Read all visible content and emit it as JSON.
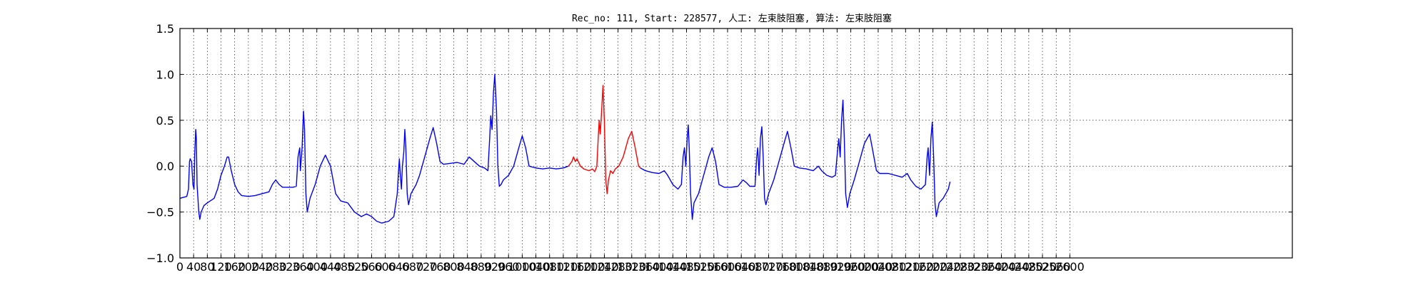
{
  "chart_data": {
    "type": "line",
    "title": "Rec_no: 111, Start: 228577, 人工: 左束肢阻塞, 算法: 左束肢阻塞",
    "xlabel": "",
    "ylabel": "",
    "xlim": [
      0,
      3250
    ],
    "ylim": [
      -1.0,
      1.5
    ],
    "grid": true,
    "yticks": [
      1.5,
      1.0,
      0.5,
      0.0,
      -0.5,
      -1.0
    ],
    "ytick_labels": [
      "1.5",
      "1.0",
      "0.5",
      "0.0",
      "−0.5",
      "−1.0"
    ],
    "xticks": [
      0,
      40,
      80,
      120,
      160,
      200,
      240,
      280,
      320,
      360,
      400,
      440,
      480,
      520,
      560,
      600,
      640,
      680,
      720,
      760,
      800,
      840,
      880,
      920,
      960,
      1000,
      1040,
      1080,
      1120,
      1160,
      1200,
      1240,
      1280,
      1320,
      1360,
      1400,
      1440,
      1480,
      1520,
      1560,
      1600,
      1640,
      1680,
      1720,
      1760,
      1800,
      1840,
      1880,
      1920,
      1960,
      2000,
      2040,
      2080,
      2120,
      2160,
      2200,
      2240,
      2280,
      2320,
      2360,
      2400,
      2440,
      2480,
      2520,
      2560,
      2600
    ],
    "xtick_labels": [
      "0",
      "40",
      "80",
      "120",
      "160",
      "200",
      "240",
      "280",
      "320",
      "360",
      "400",
      "440",
      "480",
      "520",
      "560",
      "600",
      "640",
      "680",
      "720",
      "760",
      "800",
      "840",
      "880",
      "920",
      "960",
      "1000",
      "1040",
      "1080",
      "1120",
      "1160",
      "1200",
      "1240",
      "1280",
      "1320",
      "1360",
      "1400",
      "1440",
      "1480",
      "1520",
      "1560",
      "1600",
      "1640",
      "1680",
      "1720",
      "1760",
      "1800",
      "1840",
      "1880",
      "1920",
      "1960",
      "2000",
      "2040",
      "2080",
      "2120",
      "2160",
      "2200",
      "2240",
      "2280",
      "2320",
      "2360",
      "2400",
      "2440",
      "2480",
      "2520",
      "2560",
      "2600"
    ],
    "series": [
      {
        "color": "#0000ff",
        "points": [
          [
            0,
            -0.35
          ],
          [
            20,
            -0.33
          ],
          [
            25,
            -0.25
          ],
          [
            28,
            0.05
          ],
          [
            30,
            0.08
          ],
          [
            34,
            0.05
          ],
          [
            38,
            -0.2
          ],
          [
            41,
            -0.25
          ],
          [
            43,
            0.1
          ],
          [
            46,
            0.4
          ],
          [
            48,
            0.3
          ],
          [
            50,
            -0.2
          ],
          [
            55,
            -0.5
          ],
          [
            58,
            -0.58
          ],
          [
            62,
            -0.5
          ],
          [
            70,
            -0.43
          ],
          [
            80,
            -0.4
          ],
          [
            100,
            -0.35
          ],
          [
            110,
            -0.25
          ],
          [
            120,
            -0.1
          ],
          [
            130,
            0.0
          ],
          [
            138,
            0.1
          ],
          [
            142,
            0.1
          ],
          [
            150,
            -0.05
          ],
          [
            160,
            -0.2
          ],
          [
            170,
            -0.28
          ],
          [
            180,
            -0.32
          ],
          [
            200,
            -0.33
          ],
          [
            220,
            -0.32
          ],
          [
            240,
            -0.3
          ],
          [
            260,
            -0.28
          ],
          [
            270,
            -0.2
          ],
          [
            280,
            -0.15
          ],
          [
            290,
            -0.2
          ],
          [
            300,
            -0.23
          ],
          [
            330,
            -0.23
          ],
          [
            340,
            -0.22
          ],
          [
            345,
            0.1
          ],
          [
            350,
            0.2
          ],
          [
            352,
            -0.05
          ],
          [
            357,
            0.2
          ],
          [
            361,
            0.6
          ],
          [
            364,
            0.4
          ],
          [
            368,
            -0.3
          ],
          [
            372,
            -0.5
          ],
          [
            380,
            -0.35
          ],
          [
            395,
            -0.2
          ],
          [
            410,
            0.0
          ],
          [
            425,
            0.12
          ],
          [
            440,
            0.0
          ],
          [
            455,
            -0.3
          ],
          [
            470,
            -0.38
          ],
          [
            490,
            -0.4
          ],
          [
            510,
            -0.5
          ],
          [
            530,
            -0.55
          ],
          [
            545,
            -0.52
          ],
          [
            560,
            -0.55
          ],
          [
            575,
            -0.6
          ],
          [
            590,
            -0.62
          ],
          [
            610,
            -0.6
          ],
          [
            625,
            -0.55
          ],
          [
            635,
            -0.3
          ],
          [
            638,
            -0.1
          ],
          [
            641,
            0.08
          ],
          [
            644,
            -0.1
          ],
          [
            647,
            -0.25
          ],
          [
            650,
            0.0
          ],
          [
            654,
            0.15
          ],
          [
            657,
            0.4
          ],
          [
            660,
            0.2
          ],
          [
            664,
            -0.3
          ],
          [
            668,
            -0.42
          ],
          [
            675,
            -0.3
          ],
          [
            690,
            -0.2
          ],
          [
            700,
            -0.1
          ],
          [
            715,
            0.1
          ],
          [
            730,
            0.3
          ],
          [
            740,
            0.42
          ],
          [
            750,
            0.25
          ],
          [
            760,
            0.05
          ],
          [
            770,
            0.02
          ],
          [
            790,
            0.03
          ],
          [
            810,
            0.04
          ],
          [
            830,
            0.02
          ],
          [
            845,
            0.1
          ],
          [
            860,
            0.05
          ],
          [
            875,
            0.0
          ],
          [
            890,
            -0.02
          ],
          [
            900,
            -0.05
          ],
          [
            905,
            0.3
          ],
          [
            908,
            0.55
          ],
          [
            912,
            0.4
          ],
          [
            916,
            0.8
          ],
          [
            920,
            1.0
          ],
          [
            925,
            0.6
          ],
          [
            929,
            0.0
          ],
          [
            933,
            -0.22
          ],
          [
            938,
            -0.2
          ],
          [
            945,
            -0.15
          ],
          [
            960,
            -0.1
          ],
          [
            975,
            0.0
          ],
          [
            990,
            0.2
          ],
          [
            1000,
            0.33
          ],
          [
            1010,
            0.2
          ],
          [
            1020,
            0.0
          ],
          [
            1040,
            -0.02
          ],
          [
            1060,
            -0.03
          ],
          [
            1080,
            -0.02
          ],
          [
            1100,
            -0.03
          ],
          [
            1120,
            -0.02
          ],
          [
            1135,
            0.0
          ]
        ]
      },
      {
        "color": "#ff0000",
        "points": [
          [
            1135,
            0.0
          ],
          [
            1145,
            0.05
          ],
          [
            1150,
            0.1
          ],
          [
            1155,
            0.05
          ],
          [
            1160,
            0.08
          ],
          [
            1170,
            0.0
          ],
          [
            1180,
            -0.03
          ],
          [
            1195,
            -0.05
          ],
          [
            1205,
            -0.03
          ],
          [
            1212,
            -0.06
          ],
          [
            1218,
            0.0
          ],
          [
            1222,
            0.3
          ],
          [
            1225,
            0.5
          ],
          [
            1228,
            0.35
          ],
          [
            1232,
            0.6
          ],
          [
            1236,
            0.88
          ],
          [
            1240,
            0.5
          ],
          [
            1244,
            -0.15
          ],
          [
            1248,
            -0.3
          ],
          [
            1252,
            -0.15
          ],
          [
            1258,
            -0.05
          ],
          [
            1265,
            -0.08
          ],
          [
            1272,
            -0.03
          ],
          [
            1282,
            0.0
          ],
          [
            1295,
            0.1
          ],
          [
            1310,
            0.3
          ],
          [
            1320,
            0.38
          ],
          [
            1330,
            0.2
          ],
          [
            1340,
            0.0
          ],
          [
            1345,
            -0.02
          ]
        ]
      },
      {
        "color": "#0000ff",
        "points": [
          [
            1345,
            -0.02
          ],
          [
            1360,
            -0.05
          ],
          [
            1380,
            -0.07
          ],
          [
            1400,
            -0.08
          ],
          [
            1415,
            -0.05
          ],
          [
            1425,
            -0.1
          ],
          [
            1440,
            -0.2
          ],
          [
            1455,
            -0.25
          ],
          [
            1465,
            -0.2
          ],
          [
            1470,
            0.1
          ],
          [
            1474,
            0.2
          ],
          [
            1478,
            0.0
          ],
          [
            1482,
            0.3
          ],
          [
            1485,
            0.45
          ],
          [
            1488,
            0.2
          ],
          [
            1492,
            -0.3
          ],
          [
            1497,
            -0.58
          ],
          [
            1502,
            -0.4
          ],
          [
            1515,
            -0.3
          ],
          [
            1530,
            -0.1
          ],
          [
            1545,
            0.1
          ],
          [
            1555,
            0.2
          ],
          [
            1565,
            0.05
          ],
          [
            1575,
            -0.2
          ],
          [
            1590,
            -0.23
          ],
          [
            1610,
            -0.23
          ],
          [
            1630,
            -0.22
          ],
          [
            1645,
            -0.15
          ],
          [
            1655,
            -0.18
          ],
          [
            1665,
            -0.22
          ],
          [
            1680,
            -0.22
          ],
          [
            1685,
            0.1
          ],
          [
            1688,
            0.2
          ],
          [
            1692,
            -0.1
          ],
          [
            1696,
            0.3
          ],
          [
            1700,
            0.43
          ],
          [
            1704,
            0.1
          ],
          [
            1708,
            -0.35
          ],
          [
            1712,
            -0.42
          ],
          [
            1720,
            -0.3
          ],
          [
            1735,
            -0.15
          ],
          [
            1750,
            0.05
          ],
          [
            1765,
            0.25
          ],
          [
            1775,
            0.38
          ],
          [
            1785,
            0.2
          ],
          [
            1795,
            0.0
          ],
          [
            1810,
            -0.02
          ],
          [
            1830,
            -0.03
          ],
          [
            1850,
            -0.05
          ],
          [
            1865,
            0.0
          ],
          [
            1875,
            -0.05
          ],
          [
            1890,
            -0.1
          ],
          [
            1905,
            -0.12
          ],
          [
            1915,
            -0.1
          ],
          [
            1922,
            0.2
          ],
          [
            1925,
            0.3
          ],
          [
            1929,
            0.1
          ],
          [
            1933,
            0.5
          ],
          [
            1937,
            0.72
          ],
          [
            1941,
            0.3
          ],
          [
            1945,
            -0.3
          ],
          [
            1950,
            -0.45
          ],
          [
            1957,
            -0.3
          ],
          [
            1970,
            -0.15
          ],
          [
            1985,
            0.05
          ],
          [
            2000,
            0.25
          ],
          [
            2015,
            0.35
          ],
          [
            2025,
            0.15
          ],
          [
            2035,
            -0.05
          ],
          [
            2045,
            -0.08
          ],
          [
            2070,
            -0.08
          ],
          [
            2090,
            -0.1
          ],
          [
            2110,
            -0.12
          ],
          [
            2125,
            -0.08
          ],
          [
            2135,
            -0.15
          ],
          [
            2150,
            -0.22
          ],
          [
            2165,
            -0.25
          ],
          [
            2178,
            -0.2
          ],
          [
            2183,
            0.1
          ],
          [
            2186,
            0.2
          ],
          [
            2190,
            -0.1
          ],
          [
            2194,
            0.3
          ],
          [
            2198,
            0.48
          ],
          [
            2202,
            0.1
          ],
          [
            2206,
            -0.4
          ],
          [
            2210,
            -0.55
          ],
          [
            2218,
            -0.4
          ],
          [
            2230,
            -0.35
          ],
          [
            2245,
            -0.25
          ],
          [
            2250,
            -0.17
          ]
        ]
      }
    ]
  }
}
